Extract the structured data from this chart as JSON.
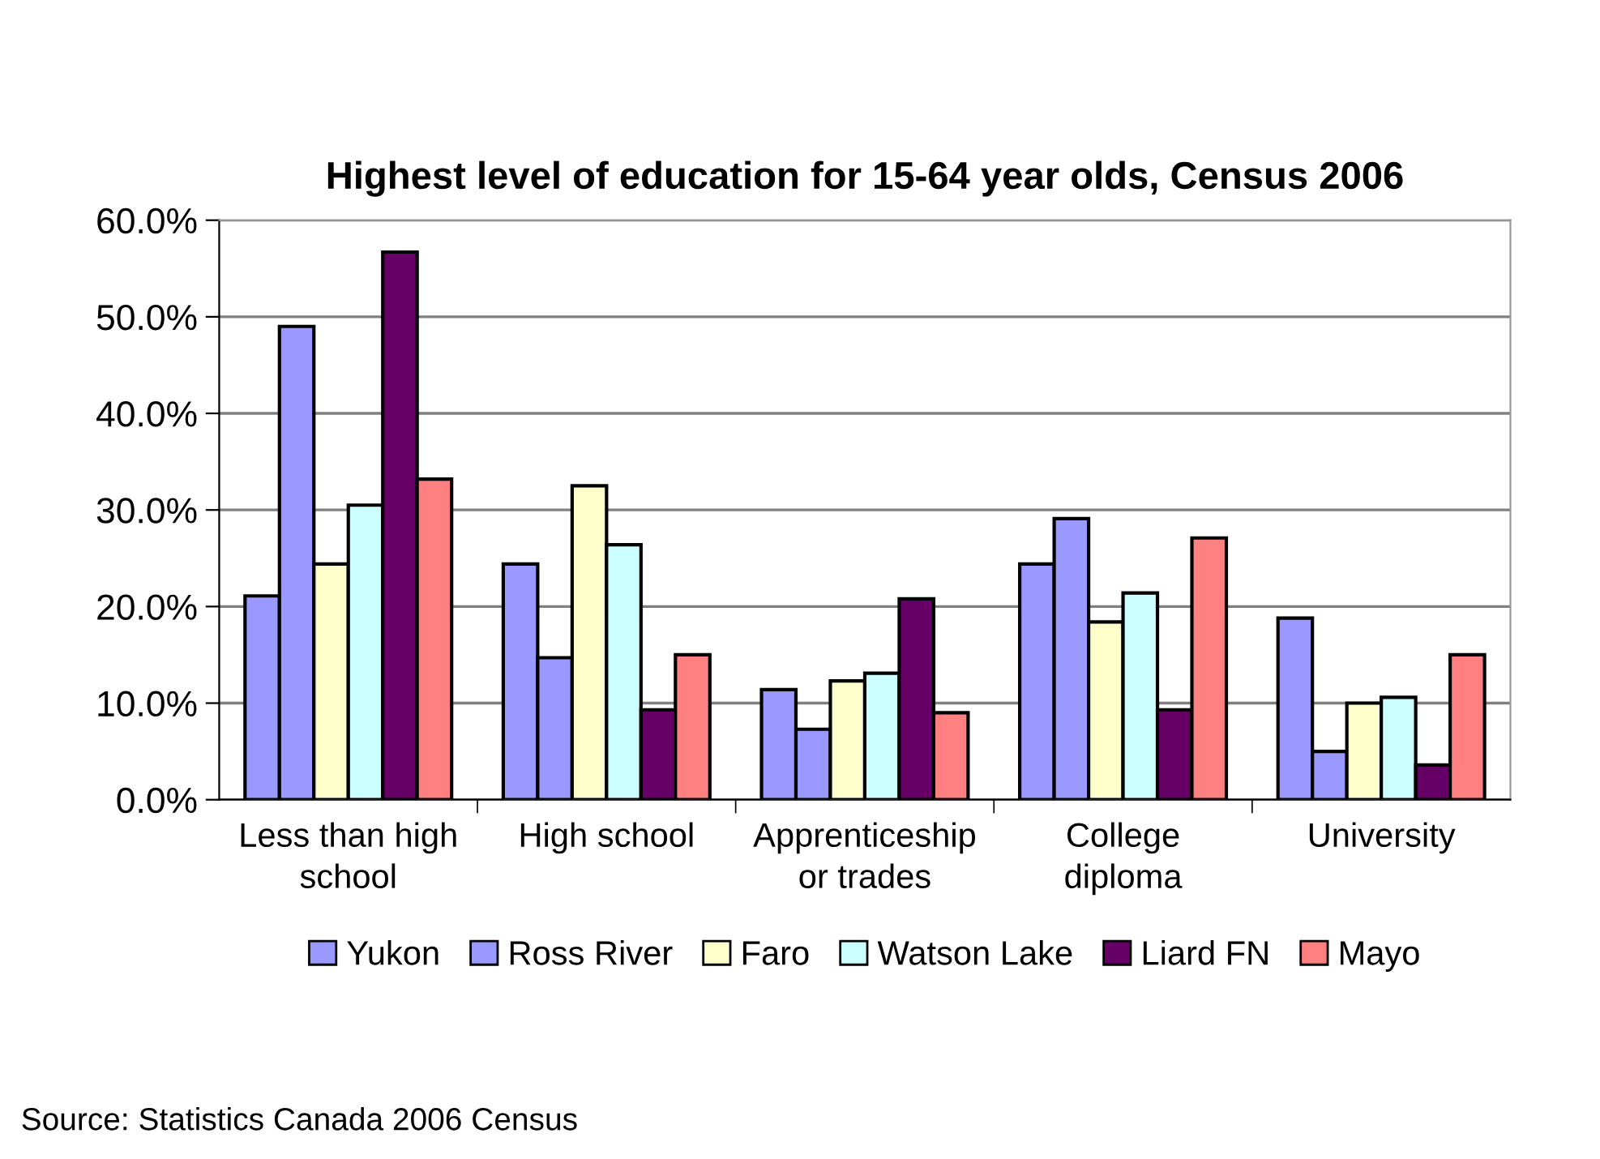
{
  "chart_data": {
    "type": "bar",
    "title": "Highest level of education for 15-64 year olds, Census 2006",
    "categories": [
      "Less than high\nschool",
      "High school",
      "Apprenticeship\nor trades",
      "College\ndiploma",
      "University"
    ],
    "series": [
      {
        "name": "Yukon",
        "color": "#9999ff",
        "values": [
          21.1,
          24.4,
          11.4,
          24.4,
          18.8
        ]
      },
      {
        "name": "Ross River",
        "color": "#9999ff",
        "values": [
          49.0,
          14.7,
          7.3,
          29.1,
          5.0
        ]
      },
      {
        "name": "Faro",
        "color": "#ffffcc",
        "values": [
          24.4,
          32.5,
          12.3,
          18.4,
          10.0
        ]
      },
      {
        "name": "Watson Lake",
        "color": "#ccffff",
        "values": [
          30.5,
          26.4,
          13.1,
          21.4,
          10.6
        ]
      },
      {
        "name": "Liard FN",
        "color": "#660066",
        "values": [
          56.7,
          9.3,
          20.8,
          9.3,
          3.6
        ]
      },
      {
        "name": "Mayo",
        "color": "#ff8080",
        "values": [
          33.2,
          15.0,
          9.0,
          27.1,
          15.0
        ]
      }
    ],
    "ylim": [
      0,
      60
    ],
    "yticks": [
      {
        "value": 0,
        "label": "0.0%"
      },
      {
        "value": 10,
        "label": "10.0%"
      },
      {
        "value": 20,
        "label": "20.0%"
      },
      {
        "value": 30,
        "label": "30.0%"
      },
      {
        "value": 40,
        "label": "40.0%"
      },
      {
        "value": 50,
        "label": "50.0%"
      },
      {
        "value": 60,
        "label": "60.0%"
      }
    ],
    "grid": "y",
    "legend": "bottom",
    "annotations": [
      "Source: Statistics Canada 2006 Census"
    ]
  }
}
